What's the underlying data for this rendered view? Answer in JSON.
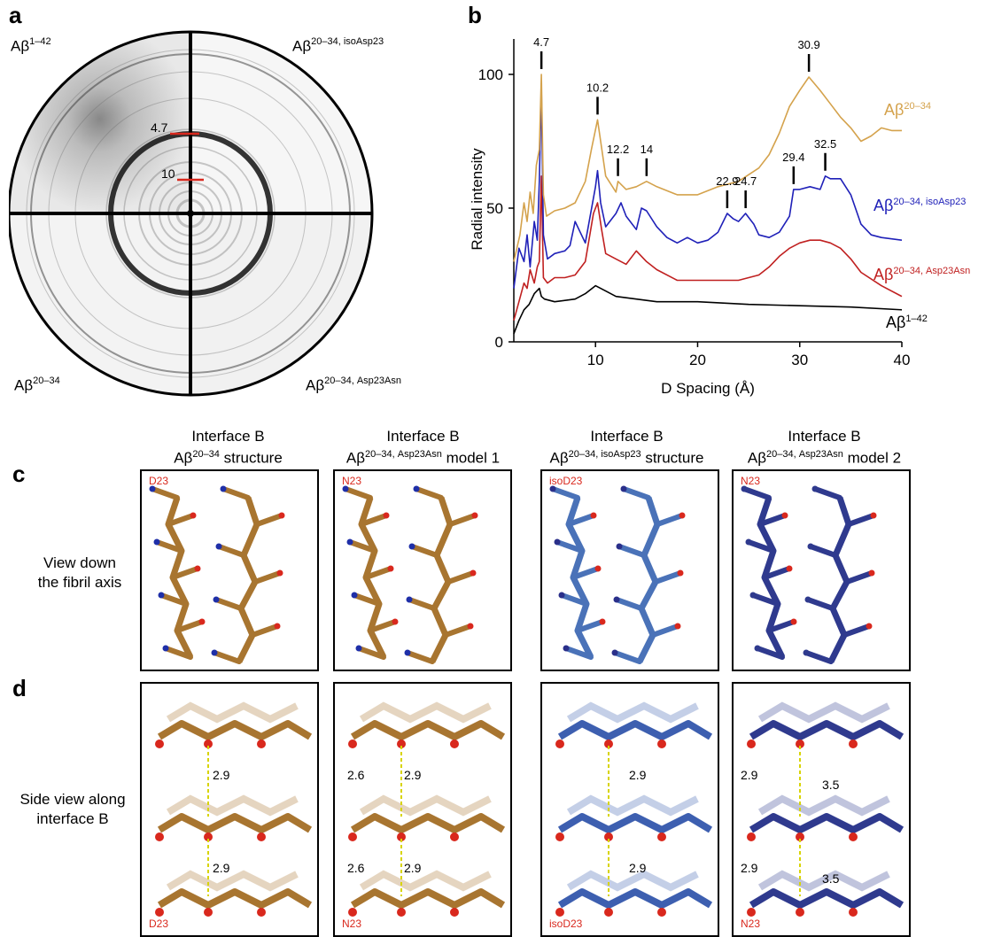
{
  "panel_a": {
    "letter": "a",
    "quadrants": {
      "top_left": {
        "base": "Aβ",
        "sup": "1–42"
      },
      "top_right": {
        "base": "Aβ",
        "sup": "20–34, isoAsp23"
      },
      "bottom_left": {
        "base": "Aβ",
        "sup": "20–34"
      },
      "bottom_right": {
        "base": "Aβ",
        "sup": "20–34, Asp23Asn"
      }
    },
    "markers": [
      "4.7",
      "10"
    ]
  },
  "panel_b": {
    "letter": "b",
    "chart_data": {
      "type": "line",
      "xlabel": "D Spacing (Å)",
      "ylabel": "Radial intensity",
      "xlim": [
        2,
        40
      ],
      "ylim": [
        0,
        100
      ],
      "xticks": [
        "10",
        "20",
        "30",
        "40"
      ],
      "yticks": [
        "0",
        "50",
        "100"
      ],
      "series": [
        {
          "name": "Aβ20–34",
          "label_base": "Aβ",
          "label_sup": "20–34",
          "color": "#d4a24c",
          "x": [
            2,
            2.6,
            3,
            3.3,
            3.6,
            3.9,
            4.2,
            4.5,
            4.7,
            4.9,
            5.2,
            6,
            7,
            8,
            9,
            9.6,
            10.2,
            11,
            12,
            12.2,
            13,
            14,
            15,
            16,
            18,
            20,
            22,
            24,
            26,
            27,
            28,
            29,
            30,
            30.9,
            32,
            33,
            34,
            35,
            36,
            37,
            38,
            39,
            40
          ],
          "y": [
            30,
            40,
            52,
            45,
            56,
            48,
            66,
            72,
            100,
            55,
            47,
            49,
            50,
            52,
            60,
            72,
            83,
            62,
            56,
            60,
            57,
            58,
            60,
            58,
            55,
            55,
            58,
            60,
            65,
            70,
            78,
            88,
            94,
            99,
            94,
            89,
            84,
            80,
            75,
            77,
            80,
            79,
            79
          ]
        },
        {
          "name": "Aβ20–34, isoAsp23",
          "label_base": "Aβ",
          "label_sup": "20–34, isoAsp23",
          "color": "#1f20b8",
          "x": [
            2,
            2.5,
            3,
            3.3,
            3.6,
            4,
            4.3,
            4.5,
            4.7,
            4.9,
            5.3,
            6,
            7,
            7.5,
            8,
            9,
            10,
            10.2,
            10.5,
            11,
            12,
            12.5,
            13,
            14,
            14.5,
            15,
            16,
            17,
            18,
            19,
            20,
            21,
            22,
            22.9,
            23.5,
            24,
            24.7,
            25.5,
            26,
            27,
            28,
            29,
            29.4,
            30,
            31,
            32,
            32.5,
            33,
            34,
            35,
            36,
            37,
            38,
            40
          ],
          "y": [
            20,
            35,
            30,
            40,
            28,
            45,
            38,
            60,
            95,
            40,
            31,
            33,
            34,
            36,
            45,
            37,
            58,
            64,
            52,
            43,
            48,
            52,
            47,
            42,
            50,
            49,
            43,
            39,
            37,
            39,
            37,
            38,
            41,
            48,
            46,
            45,
            48,
            44,
            40,
            39,
            41,
            47,
            57,
            57,
            58,
            57,
            62,
            61,
            61,
            55,
            44,
            40,
            39,
            38
          ]
        },
        {
          "name": "Aβ20–34, Asp23Asn",
          "label_base": "Aβ",
          "label_sup": "20–34, Asp23Asn",
          "color": "#c02020",
          "x": [
            2,
            2.5,
            3,
            3.3,
            3.6,
            4,
            4.3,
            4.5,
            4.7,
            4.9,
            5.3,
            6,
            7,
            8,
            9,
            9.8,
            10.2,
            10.6,
            11,
            12,
            13,
            14,
            15,
            16,
            18,
            20,
            22,
            24,
            26,
            27,
            28,
            29,
            30,
            31,
            32,
            33,
            34,
            35,
            36,
            38,
            40
          ],
          "y": [
            8,
            15,
            22,
            20,
            27,
            22,
            28,
            30,
            62,
            24,
            22,
            24,
            24,
            25,
            30,
            48,
            52,
            42,
            33,
            31,
            29,
            34,
            30,
            27,
            23,
            23,
            23,
            23,
            25,
            28,
            32,
            35,
            37,
            38,
            38,
            37,
            35,
            31,
            26,
            21,
            17
          ]
        },
        {
          "name": "Aβ1–42",
          "label_base": "Aβ",
          "label_sup": "1–42",
          "color": "#000000",
          "x": [
            2,
            2.5,
            3,
            3.5,
            4,
            4.5,
            4.7,
            5,
            6,
            8,
            9,
            10,
            11,
            12,
            14,
            16,
            20,
            25,
            30,
            35,
            40
          ],
          "y": [
            3,
            8,
            12,
            14,
            18,
            20,
            17,
            16,
            15,
            16,
            18,
            21,
            19,
            17,
            16,
            15,
            15,
            14,
            13.5,
            13,
            12
          ]
        }
      ],
      "annotations": [
        {
          "text": "4.7",
          "x": 4.7,
          "y": 100
        },
        {
          "text": "10.2",
          "x": 10.2,
          "y": 83
        },
        {
          "text": "12.2",
          "x": 12.2,
          "y": 60
        },
        {
          "text": "14",
          "x": 15.0,
          "y": 60
        },
        {
          "text": "30.9",
          "x": 30.9,
          "y": 99
        },
        {
          "text": "29.4",
          "x": 29.4,
          "y": 57
        },
        {
          "text": "32.5",
          "x": 32.5,
          "y": 62
        },
        {
          "text": "22.9",
          "x": 22.9,
          "y": 48
        },
        {
          "text": "24.7",
          "x": 24.7,
          "y": 48
        }
      ]
    }
  },
  "panel_c": {
    "letter": "c"
  },
  "panel_d": {
    "letter": "d"
  },
  "columns": [
    {
      "line1": "Interface B",
      "base": "Aβ",
      "sup": "20–34",
      "suffix": " structure"
    },
    {
      "line1": "Interface B",
      "base": "Aβ",
      "sup": "20–34, Asp23Asn",
      "suffix": " model 1"
    },
    {
      "line1": "Interface B",
      "base": "Aβ",
      "sup": "20–34, isoAsp23",
      "suffix": " structure"
    },
    {
      "line1": "Interface B",
      "base": "Aβ",
      "sup": "20–34, Asp23Asn",
      "suffix": " model 2"
    }
  ],
  "row_labels": {
    "c": [
      "View down",
      "the fibril axis"
    ],
    "d": [
      "Side view along",
      "interface B"
    ]
  },
  "residue_labels": {
    "c": [
      "D23",
      "N23",
      "isoD23",
      "N23"
    ],
    "d": [
      "D23",
      "N23",
      "isoD23",
      "N23"
    ]
  },
  "hbond_labels": {
    "d1": [
      "2.9",
      "2.9"
    ],
    "d2": [
      "2.6",
      "2.9",
      "2.6",
      "2.9"
    ],
    "d3": [
      "2.9",
      "2.9"
    ],
    "d4": [
      "2.9",
      "3.5",
      "2.9",
      "3.5"
    ]
  }
}
